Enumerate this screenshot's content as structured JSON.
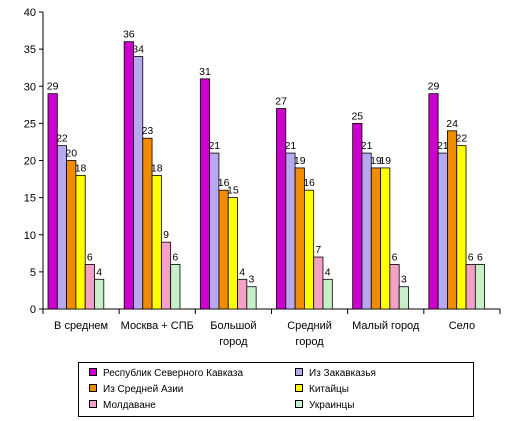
{
  "chart_data": {
    "type": "bar",
    "categories": [
      [
        "В среднем"
      ],
      [
        "Москва + СПБ"
      ],
      [
        "Большой",
        "город"
      ],
      [
        "Средний",
        "город"
      ],
      [
        "Малый город"
      ],
      [
        "Село"
      ]
    ],
    "ylim": [
      0,
      40
    ],
    "ytick_step": 5,
    "grid": false,
    "legend_position": "bottom",
    "series": [
      {
        "name": "Республик Северного Кавказа",
        "color": "#cc00cc",
        "values": [
          29,
          36,
          31,
          27,
          25,
          29
        ]
      },
      {
        "name": "Из Закавказья",
        "color": "#b8a8f0",
        "values": [
          22,
          34,
          21,
          21,
          21,
          21
        ]
      },
      {
        "name": "Из Средней Азии",
        "color": "#f08c00",
        "values": [
          20,
          23,
          16,
          19,
          19,
          24
        ]
      },
      {
        "name": "Китайцы",
        "color": "#ffff00",
        "values": [
          18,
          18,
          15,
          16,
          19,
          22
        ]
      },
      {
        "name": "Молдаване",
        "color": "#f4a0c8",
        "values": [
          6,
          9,
          4,
          7,
          6,
          6
        ]
      },
      {
        "name": "Украинцы",
        "color": "#c8f0c8",
        "values": [
          4,
          6,
          3,
          4,
          3,
          6
        ]
      }
    ]
  }
}
